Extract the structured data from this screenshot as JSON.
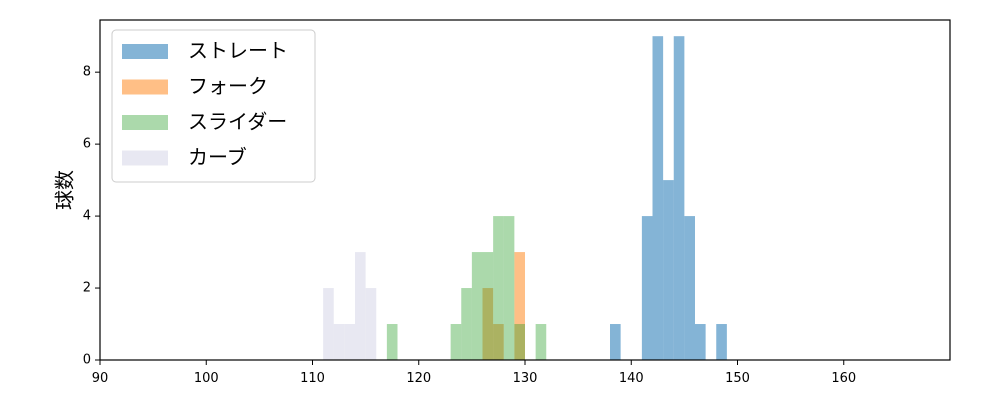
{
  "chart_data": {
    "type": "bar",
    "histogram": true,
    "title": "",
    "xlabel": "",
    "ylabel": "球数",
    "xlim": [
      90,
      170
    ],
    "ylim": [
      0,
      9.45
    ],
    "xticks": [
      90,
      100,
      110,
      120,
      130,
      140,
      150,
      160
    ],
    "yticks": [
      0,
      2,
      4,
      6,
      8
    ],
    "grid": false,
    "legend_position": "top-left",
    "series": [
      {
        "name": "ストレート",
        "color": "#1f77b4",
        "alpha": 0.55,
        "bins": [
          {
            "x0": 138.0,
            "x1": 139.0,
            "count": 1
          },
          {
            "x0": 141.0,
            "x1": 142.0,
            "count": 4
          },
          {
            "x0": 142.0,
            "x1": 143.0,
            "count": 9
          },
          {
            "x0": 143.0,
            "x1": 144.0,
            "count": 5
          },
          {
            "x0": 144.0,
            "x1": 145.0,
            "count": 9
          },
          {
            "x0": 145.0,
            "x1": 146.0,
            "count": 4
          },
          {
            "x0": 146.0,
            "x1": 147.0,
            "count": 1
          },
          {
            "x0": 148.0,
            "x1": 149.0,
            "count": 1
          }
        ]
      },
      {
        "name": "フォーク",
        "color": "#ff7f0e",
        "alpha": 0.5,
        "bins": [
          {
            "x0": 126.0,
            "x1": 127.0,
            "count": 2
          },
          {
            "x0": 127.0,
            "x1": 128.0,
            "count": 1
          },
          {
            "x0": 129.0,
            "x1": 130.0,
            "count": 3
          }
        ]
      },
      {
        "name": "スライダー",
        "color": "#2ca02c",
        "alpha": 0.4,
        "bins": [
          {
            "x0": 117.0,
            "x1": 118.0,
            "count": 1
          },
          {
            "x0": 123.0,
            "x1": 124.0,
            "count": 1
          },
          {
            "x0": 124.0,
            "x1": 125.0,
            "count": 2
          },
          {
            "x0": 125.0,
            "x1": 126.0,
            "count": 3
          },
          {
            "x0": 126.0,
            "x1": 127.0,
            "count": 3
          },
          {
            "x0": 127.0,
            "x1": 128.0,
            "count": 4
          },
          {
            "x0": 128.0,
            "x1": 129.0,
            "count": 4
          },
          {
            "x0": 129.0,
            "x1": 130.0,
            "count": 1
          },
          {
            "x0": 131.0,
            "x1": 132.0,
            "count": 1
          }
        ]
      },
      {
        "name": "カーブ",
        "color": "#d9d9ea",
        "alpha": 0.6,
        "bins": [
          {
            "x0": 111.0,
            "x1": 112.0,
            "count": 2
          },
          {
            "x0": 112.0,
            "x1": 113.0,
            "count": 1
          },
          {
            "x0": 113.0,
            "x1": 114.0,
            "count": 1
          },
          {
            "x0": 114.0,
            "x1": 115.0,
            "count": 3
          },
          {
            "x0": 115.0,
            "x1": 116.0,
            "count": 2
          }
        ]
      }
    ]
  }
}
